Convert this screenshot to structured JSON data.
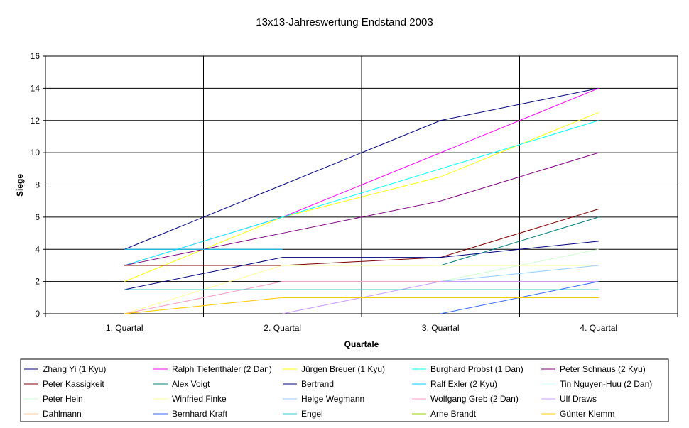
{
  "chart_data": {
    "type": "line",
    "title": "13x13-Jahreswertung Endstand 2003",
    "xlabel": "Quartale",
    "ylabel": "Siege",
    "categories": [
      "1. Quartal",
      "2. Quartal",
      "3. Quartal",
      "4. Quartal"
    ],
    "ylim": [
      0,
      16
    ],
    "yticks": [
      0,
      2,
      4,
      6,
      8,
      10,
      12,
      14,
      16
    ],
    "grid": true,
    "legend_position": "bottom",
    "series": [
      {
        "name": "Zhang Yi (1 Kyu)",
        "color": "#000080",
        "values": [
          4,
          8,
          12,
          14
        ]
      },
      {
        "name": "Ralph Tiefenthaler (2 Dan)",
        "color": "#FF00FF",
        "values": [
          3,
          6,
          10,
          14
        ]
      },
      {
        "name": "Jürgen Breuer (1 Kyu)",
        "color": "#FFFF00",
        "values": [
          2,
          6,
          8.5,
          12.5
        ]
      },
      {
        "name": "Burghard Probst (1 Dan)",
        "color": "#00FFFF",
        "values": [
          3,
          6,
          9,
          12
        ]
      },
      {
        "name": "Peter Schnaus (2 Kyu)",
        "color": "#800080",
        "values": [
          3,
          5,
          7,
          10
        ]
      },
      {
        "name": "Peter Kassigkeit",
        "color": "#800000",
        "values": [
          3,
          3,
          3.5,
          6.5
        ]
      },
      {
        "name": "Alex Voigt",
        "color": "#008080",
        "values": [
          null,
          null,
          3,
          6
        ]
      },
      {
        "name": "Bertrand",
        "color": "#000080",
        "values": [
          1.5,
          3.5,
          3.5,
          4.5
        ]
      },
      {
        "name": "Ralf Exler (2 Kyu)",
        "color": "#00CCFF",
        "values": [
          4,
          4,
          null,
          null
        ]
      },
      {
        "name": "Tin Nguyen-Huu (2 Dan)",
        "color": "#CCFFFF",
        "values": [
          null,
          null,
          2,
          3
        ]
      },
      {
        "name": "Peter Hein",
        "color": "#CCFFCC",
        "values": [
          0,
          2,
          2,
          4
        ]
      },
      {
        "name": "Winfried Finke",
        "color": "#FFFF99",
        "values": [
          0,
          3,
          3,
          3
        ]
      },
      {
        "name": "Helge Wegmann",
        "color": "#99CCFF",
        "values": [
          null,
          null,
          2,
          3
        ]
      },
      {
        "name": "Wolfgang Greb (2 Dan)",
        "color": "#FF99CC",
        "values": [
          0,
          2,
          2,
          2
        ]
      },
      {
        "name": "Ulf Draws",
        "color": "#CC99FF",
        "values": [
          null,
          0,
          2,
          2
        ]
      },
      {
        "name": "Dahlmann",
        "color": "#FFCC99",
        "values": [
          0,
          1,
          1,
          1
        ]
      },
      {
        "name": "Bernhard Kraft",
        "color": "#3366FF",
        "values": [
          null,
          null,
          0,
          2
        ]
      },
      {
        "name": "Engel",
        "color": "#33CCCC",
        "values": [
          1.5,
          1.5,
          1.5,
          1.5
        ]
      },
      {
        "name": "Arne Brandt",
        "color": "#99CC00",
        "values": [
          null,
          1,
          1,
          1
        ]
      },
      {
        "name": "Günter Klemm",
        "color": "#FFCC00",
        "values": [
          0,
          1,
          1,
          1
        ]
      }
    ]
  }
}
